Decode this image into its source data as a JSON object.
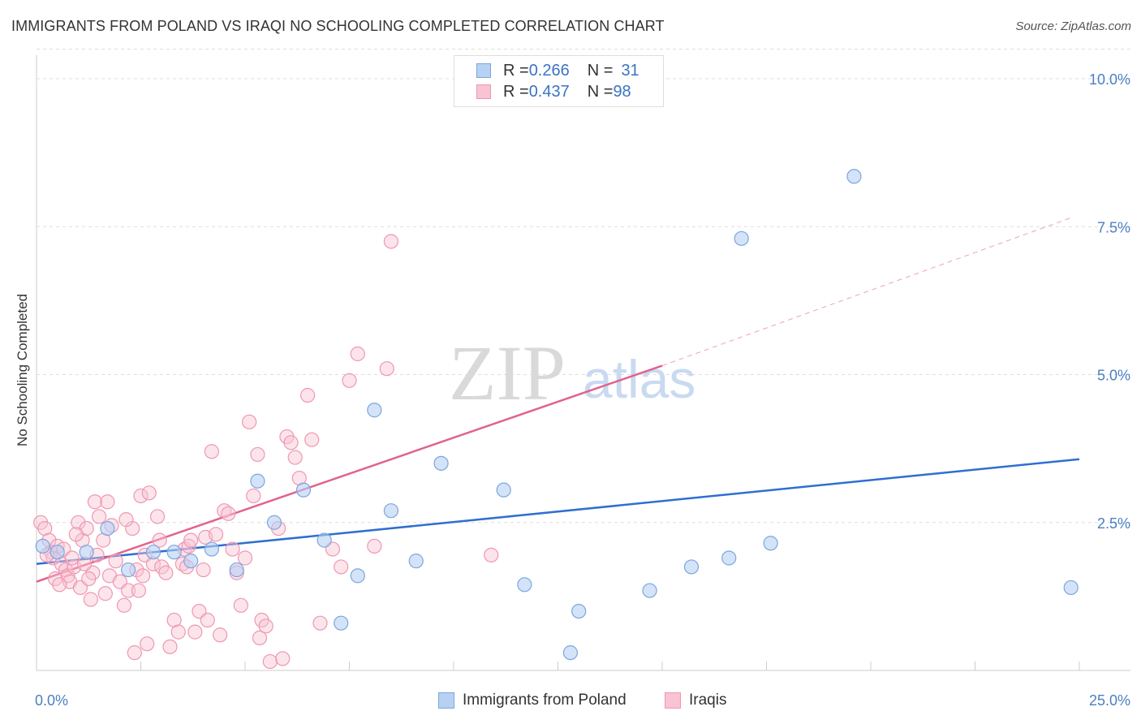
{
  "header": {
    "title": "IMMIGRANTS FROM POLAND VS IRAQI NO SCHOOLING COMPLETED CORRELATION CHART",
    "source": "Source: ZipAtlas.com"
  },
  "watermark": {
    "zip": "ZIP",
    "atlas": "atlas"
  },
  "legend_top": {
    "rows": [
      {
        "r_label": "R = ",
        "r_value": "0.266",
        "n_label": "N = ",
        "n_value": "31"
      },
      {
        "r_label": "R = ",
        "r_value": "0.437",
        "n_label": "N = ",
        "n_value": "98"
      }
    ]
  },
  "legend_bottom": {
    "items": [
      "Immigrants from Poland",
      "Iraqis"
    ]
  },
  "colors": {
    "poland_fill": "#b7d1f3",
    "poland_stroke": "#7aa6df",
    "poland_line": "#2f6fcf",
    "iraq_fill": "#f8c3d3",
    "iraq_stroke": "#ef97b3",
    "iraq_line": "#e0638c",
    "grid": "#dddddd",
    "tick": "#4a7fc1"
  },
  "chart_data": {
    "type": "scatter",
    "title": "IMMIGRANTS FROM POLAND VS IRAQI NO SCHOOLING COMPLETED CORRELATION CHART",
    "xlabel": "",
    "ylabel": "No Schooling Completed",
    "xlim": [
      0,
      25
    ],
    "ylim": [
      0,
      10.5
    ],
    "x_tick_labels": [
      "0.0%",
      "25.0%"
    ],
    "y_ticks": [
      2.5,
      5.0,
      7.5,
      10.0
    ],
    "y_tick_labels": [
      "2.5%",
      "5.0%",
      "7.5%",
      "10.0%"
    ],
    "grid": true,
    "legend_position": "top-center",
    "series": [
      {
        "name": "Immigrants from Poland",
        "r": 0.266,
        "n": 31,
        "trend": [
          [
            0,
            1.8
          ],
          [
            25,
            3.57
          ]
        ],
        "points": [
          [
            0.15,
            2.1
          ],
          [
            0.5,
            2.0
          ],
          [
            1.2,
            2.0
          ],
          [
            1.7,
            2.4
          ],
          [
            2.2,
            1.7
          ],
          [
            2.8,
            2.0
          ],
          [
            3.3,
            2.0
          ],
          [
            3.7,
            1.85
          ],
          [
            4.2,
            2.05
          ],
          [
            4.8,
            1.7
          ],
          [
            5.3,
            3.2
          ],
          [
            5.7,
            2.5
          ],
          [
            6.4,
            3.05
          ],
          [
            6.9,
            2.2
          ],
          [
            7.3,
            0.8
          ],
          [
            7.7,
            1.6
          ],
          [
            8.1,
            4.4
          ],
          [
            8.5,
            2.7
          ],
          [
            9.1,
            1.85
          ],
          [
            9.7,
            3.5
          ],
          [
            11.2,
            3.05
          ],
          [
            11.7,
            1.45
          ],
          [
            12.8,
            0.3
          ],
          [
            13.0,
            1.0
          ],
          [
            14.7,
            1.35
          ],
          [
            15.7,
            1.75
          ],
          [
            16.6,
            1.9
          ],
          [
            16.9,
            7.3
          ],
          [
            17.6,
            2.15
          ],
          [
            19.6,
            8.35
          ],
          [
            24.8,
            1.4
          ]
        ]
      },
      {
        "name": "Iraqis",
        "r": 0.437,
        "n": 98,
        "trend": [
          [
            0,
            1.5
          ],
          [
            15,
            5.15
          ]
        ],
        "trend_dashed": [
          [
            15,
            5.15
          ],
          [
            24.8,
            7.65
          ]
        ],
        "points": [
          [
            0.1,
            2.5
          ],
          [
            0.2,
            2.4
          ],
          [
            0.3,
            2.2
          ],
          [
            0.35,
            2.0
          ],
          [
            0.4,
            1.9
          ],
          [
            0.5,
            2.1
          ],
          [
            0.6,
            1.8
          ],
          [
            0.7,
            1.7
          ],
          [
            0.75,
            1.6
          ],
          [
            0.8,
            1.5
          ],
          [
            0.9,
            1.75
          ],
          [
            1.0,
            2.5
          ],
          [
            1.05,
            1.4
          ],
          [
            1.1,
            2.2
          ],
          [
            1.2,
            2.4
          ],
          [
            1.3,
            1.2
          ],
          [
            1.35,
            1.65
          ],
          [
            1.4,
            2.85
          ],
          [
            1.5,
            2.6
          ],
          [
            1.6,
            2.2
          ],
          [
            1.65,
            1.3
          ],
          [
            1.7,
            2.85
          ],
          [
            1.75,
            1.6
          ],
          [
            1.8,
            2.45
          ],
          [
            1.9,
            1.85
          ],
          [
            2.0,
            1.5
          ],
          [
            2.1,
            1.1
          ],
          [
            2.2,
            1.35
          ],
          [
            2.3,
            2.4
          ],
          [
            2.4,
            1.7
          ],
          [
            2.5,
            2.95
          ],
          [
            2.55,
            1.6
          ],
          [
            2.6,
            1.95
          ],
          [
            2.7,
            3.0
          ],
          [
            2.8,
            1.8
          ],
          [
            2.9,
            2.6
          ],
          [
            2.95,
            2.2
          ],
          [
            3.0,
            1.75
          ],
          [
            3.1,
            1.65
          ],
          [
            3.2,
            0.4
          ],
          [
            3.3,
            0.85
          ],
          [
            3.4,
            0.65
          ],
          [
            3.5,
            1.8
          ],
          [
            3.55,
            2.05
          ],
          [
            3.6,
            1.75
          ],
          [
            3.65,
            2.1
          ],
          [
            3.7,
            2.2
          ],
          [
            3.8,
            0.65
          ],
          [
            3.9,
            1.0
          ],
          [
            4.0,
            1.7
          ],
          [
            4.05,
            2.25
          ],
          [
            4.1,
            0.85
          ],
          [
            4.2,
            3.7
          ],
          [
            4.3,
            2.3
          ],
          [
            4.4,
            0.6
          ],
          [
            4.5,
            2.7
          ],
          [
            4.6,
            2.65
          ],
          [
            4.7,
            2.05
          ],
          [
            4.8,
            1.65
          ],
          [
            4.9,
            1.1
          ],
          [
            5.0,
            1.9
          ],
          [
            5.1,
            4.2
          ],
          [
            5.2,
            2.95
          ],
          [
            5.3,
            3.65
          ],
          [
            5.35,
            0.55
          ],
          [
            5.4,
            0.85
          ],
          [
            5.5,
            0.75
          ],
          [
            5.6,
            0.15
          ],
          [
            5.8,
            2.4
          ],
          [
            5.9,
            0.2
          ],
          [
            6.0,
            3.95
          ],
          [
            6.1,
            3.85
          ],
          [
            6.2,
            3.6
          ],
          [
            6.3,
            3.25
          ],
          [
            6.5,
            4.65
          ],
          [
            6.6,
            3.9
          ],
          [
            6.8,
            0.8
          ],
          [
            7.1,
            2.05
          ],
          [
            7.3,
            1.75
          ],
          [
            7.5,
            4.9
          ],
          [
            7.7,
            5.35
          ],
          [
            8.1,
            2.1
          ],
          [
            8.4,
            5.1
          ],
          [
            8.5,
            7.25
          ],
          [
            10.9,
            1.95
          ],
          [
            0.25,
            1.95
          ],
          [
            0.45,
            1.55
          ],
          [
            0.55,
            1.45
          ],
          [
            0.65,
            2.05
          ],
          [
            0.85,
            1.9
          ],
          [
            0.95,
            2.3
          ],
          [
            1.15,
            1.8
          ],
          [
            1.25,
            1.55
          ],
          [
            1.45,
            1.95
          ],
          [
            2.15,
            2.55
          ],
          [
            2.35,
            0.3
          ],
          [
            2.45,
            1.35
          ],
          [
            2.65,
            0.45
          ]
        ]
      }
    ]
  }
}
